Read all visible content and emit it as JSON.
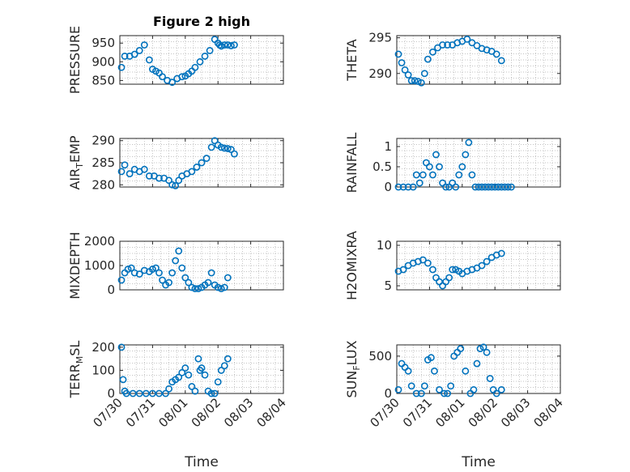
{
  "figure": {
    "title": "Figure 2 high",
    "accent": "#0072bd"
  },
  "chart_data": [
    {
      "type": "scatter",
      "title": "Figure 2 high",
      "ylabel": "PRESSURE",
      "xlabel": "",
      "xlim": [
        0,
        5
      ],
      "ylim": [
        840,
        970
      ],
      "yticks": [
        850,
        900,
        950
      ],
      "grid": true,
      "x": [
        0.05,
        0.15,
        0.3,
        0.45,
        0.6,
        0.75,
        0.9,
        1.0,
        1.1,
        1.2,
        1.3,
        1.45,
        1.6,
        1.75,
        1.9,
        2.0,
        2.1,
        2.2,
        2.3,
        2.45,
        2.6,
        2.75,
        2.9,
        3.0,
        3.05,
        3.1,
        3.2,
        3.3,
        3.4,
        3.5
      ],
      "y": [
        885,
        915,
        915,
        920,
        930,
        945,
        905,
        880,
        875,
        870,
        860,
        850,
        845,
        855,
        860,
        862,
        868,
        875,
        885,
        900,
        915,
        930,
        960,
        950,
        945,
        942,
        945,
        945,
        943,
        945
      ]
    },
    {
      "type": "scatter",
      "title": "",
      "ylabel": "THETA",
      "xlabel": "",
      "xlim": [
        0,
        5
      ],
      "ylim": [
        288.5,
        295.3
      ],
      "yticks": [
        290,
        295
      ],
      "grid": true,
      "x": [
        0.05,
        0.15,
        0.25,
        0.35,
        0.45,
        0.55,
        0.65,
        0.75,
        0.85,
        0.95,
        1.1,
        1.25,
        1.4,
        1.55,
        1.7,
        1.85,
        2.0,
        2.15,
        2.3,
        2.45,
        2.6,
        2.75,
        2.9,
        3.05,
        3.2
      ],
      "y": [
        292.7,
        291.5,
        290.5,
        289.8,
        289.0,
        289.0,
        288.9,
        288.7,
        290.0,
        292.0,
        293.0,
        293.6,
        294.0,
        294.0,
        294.0,
        294.3,
        294.5,
        294.8,
        294.3,
        293.9,
        293.5,
        293.3,
        293.1,
        292.7,
        291.8
      ]
    },
    {
      "type": "scatter",
      "title": "",
      "ylabel": "AIR_TEMP",
      "xlabel": "",
      "xlim": [
        0,
        5
      ],
      "ylim": [
        279.5,
        290.5
      ],
      "yticks": [
        280,
        285,
        290
      ],
      "grid": true,
      "x": [
        0.05,
        0.15,
        0.3,
        0.45,
        0.6,
        0.75,
        0.9,
        1.05,
        1.2,
        1.35,
        1.5,
        1.6,
        1.7,
        1.8,
        1.9,
        2.05,
        2.2,
        2.35,
        2.5,
        2.65,
        2.8,
        2.9,
        3.0,
        3.1,
        3.2,
        3.3,
        3.4,
        3.5
      ],
      "y": [
        283,
        284.5,
        282.5,
        283.5,
        283.0,
        283.5,
        282.0,
        282.0,
        281.5,
        281.5,
        281.0,
        280.0,
        279.8,
        281.0,
        282.0,
        282.5,
        283.0,
        284.0,
        285.0,
        286.0,
        288.5,
        290.0,
        289.0,
        288.5,
        288.3,
        288.2,
        288.0,
        287.0
      ]
    },
    {
      "type": "scatter",
      "title": "",
      "ylabel": "RAINFALL",
      "xlabel": "",
      "xlim": [
        0,
        5
      ],
      "ylim": [
        0,
        1.2
      ],
      "yticks": [
        0,
        0.5,
        1
      ],
      "grid": true,
      "x": [
        0.05,
        0.2,
        0.35,
        0.5,
        0.6,
        0.7,
        0.8,
        0.9,
        1.0,
        1.1,
        1.2,
        1.3,
        1.4,
        1.5,
        1.6,
        1.7,
        1.8,
        1.9,
        2.0,
        2.1,
        2.2,
        2.3,
        2.4,
        2.5,
        2.6,
        2.7,
        2.8,
        2.9,
        3.0,
        3.1,
        3.2,
        3.3,
        3.4,
        3.5
      ],
      "y": [
        0,
        0,
        0,
        0,
        0.3,
        0.1,
        0.3,
        0.6,
        0.5,
        0.3,
        0.8,
        0.5,
        0.1,
        0,
        0,
        0.1,
        0,
        0.3,
        0.5,
        0.8,
        1.1,
        0.3,
        0,
        0,
        0,
        0,
        0,
        0,
        0,
        0,
        0,
        0,
        0,
        0
      ]
    },
    {
      "type": "scatter",
      "title": "",
      "ylabel": "MIXDEPTH",
      "xlabel": "",
      "xlim": [
        0,
        5
      ],
      "ylim": [
        0,
        2000
      ],
      "yticks": [
        0,
        1000,
        2000
      ],
      "grid": true,
      "x": [
        0.05,
        0.15,
        0.25,
        0.35,
        0.45,
        0.6,
        0.75,
        0.9,
        1.0,
        1.1,
        1.2,
        1.3,
        1.4,
        1.5,
        1.6,
        1.7,
        1.8,
        1.9,
        2.0,
        2.1,
        2.2,
        2.3,
        2.4,
        2.5,
        2.6,
        2.7,
        2.8,
        2.9,
        3.0,
        3.1,
        3.2,
        3.3
      ],
      "y": [
        400,
        700,
        850,
        900,
        700,
        650,
        800,
        750,
        850,
        900,
        700,
        400,
        200,
        300,
        700,
        1200,
        1600,
        900,
        500,
        300,
        100,
        50,
        50,
        100,
        200,
        300,
        700,
        200,
        100,
        50,
        100,
        500
      ]
    },
    {
      "type": "scatter",
      "title": "",
      "ylabel": "H2OMIXRA",
      "xlabel": "",
      "xlim": [
        0,
        5
      ],
      "ylim": [
        4.5,
        10.5
      ],
      "yticks": [
        5,
        10
      ],
      "grid": true,
      "x": [
        0.05,
        0.2,
        0.35,
        0.5,
        0.65,
        0.8,
        0.95,
        1.1,
        1.2,
        1.3,
        1.4,
        1.5,
        1.6,
        1.7,
        1.8,
        1.9,
        2.0,
        2.15,
        2.3,
        2.45,
        2.6,
        2.75,
        2.9,
        3.05,
        3.2
      ],
      "y": [
        6.8,
        7.0,
        7.5,
        7.8,
        8.0,
        8.2,
        7.8,
        7.0,
        6.0,
        5.5,
        5.0,
        5.5,
        6.0,
        7.0,
        7.0,
        6.8,
        6.5,
        6.8,
        7.0,
        7.2,
        7.5,
        8.0,
        8.5,
        8.8,
        9.0
      ]
    },
    {
      "type": "scatter",
      "title": "",
      "ylabel": "TERR_MSL",
      "xlabel": "Time",
      "xlim": [
        0,
        5
      ],
      "ylim": [
        0,
        210
      ],
      "yticks": [
        0,
        100,
        200
      ],
      "grid": true,
      "xticks": [
        "07/30",
        "07/31",
        "08/01",
        "08/02",
        "08/03",
        "08/04"
      ],
      "x": [
        0.05,
        0.1,
        0.15,
        0.2,
        0.4,
        0.6,
        0.8,
        1.0,
        1.2,
        1.4,
        1.5,
        1.6,
        1.7,
        1.8,
        1.9,
        2.0,
        2.1,
        2.2,
        2.3,
        2.4,
        2.45,
        2.5,
        2.6,
        2.7,
        2.8,
        2.9,
        3.0,
        3.1,
        3.2,
        3.3
      ],
      "y": [
        200,
        60,
        10,
        0,
        0,
        0,
        0,
        0,
        0,
        0,
        20,
        50,
        60,
        70,
        90,
        110,
        80,
        30,
        10,
        150,
        100,
        110,
        80,
        10,
        0,
        0,
        50,
        100,
        120,
        150
      ]
    },
    {
      "type": "scatter",
      "title": "",
      "ylabel": "SUN_FLUX",
      "xlabel": "Time",
      "xlim": [
        0,
        5
      ],
      "ylim": [
        0,
        650
      ],
      "yticks": [
        0,
        500
      ],
      "grid": true,
      "xticks": [
        "07/30",
        "07/31",
        "08/01",
        "08/02",
        "08/03",
        "08/04"
      ],
      "x": [
        0.05,
        0.15,
        0.25,
        0.35,
        0.45,
        0.6,
        0.75,
        0.85,
        0.95,
        1.05,
        1.15,
        1.3,
        1.45,
        1.55,
        1.65,
        1.75,
        1.85,
        1.95,
        2.1,
        2.25,
        2.35,
        2.45,
        2.55,
        2.65,
        2.75,
        2.85,
        2.95,
        3.05,
        3.2
      ],
      "y": [
        50,
        400,
        350,
        300,
        100,
        0,
        0,
        100,
        450,
        480,
        300,
        50,
        0,
        0,
        100,
        500,
        550,
        600,
        300,
        0,
        50,
        400,
        600,
        620,
        550,
        200,
        50,
        0,
        50
      ]
    }
  ]
}
